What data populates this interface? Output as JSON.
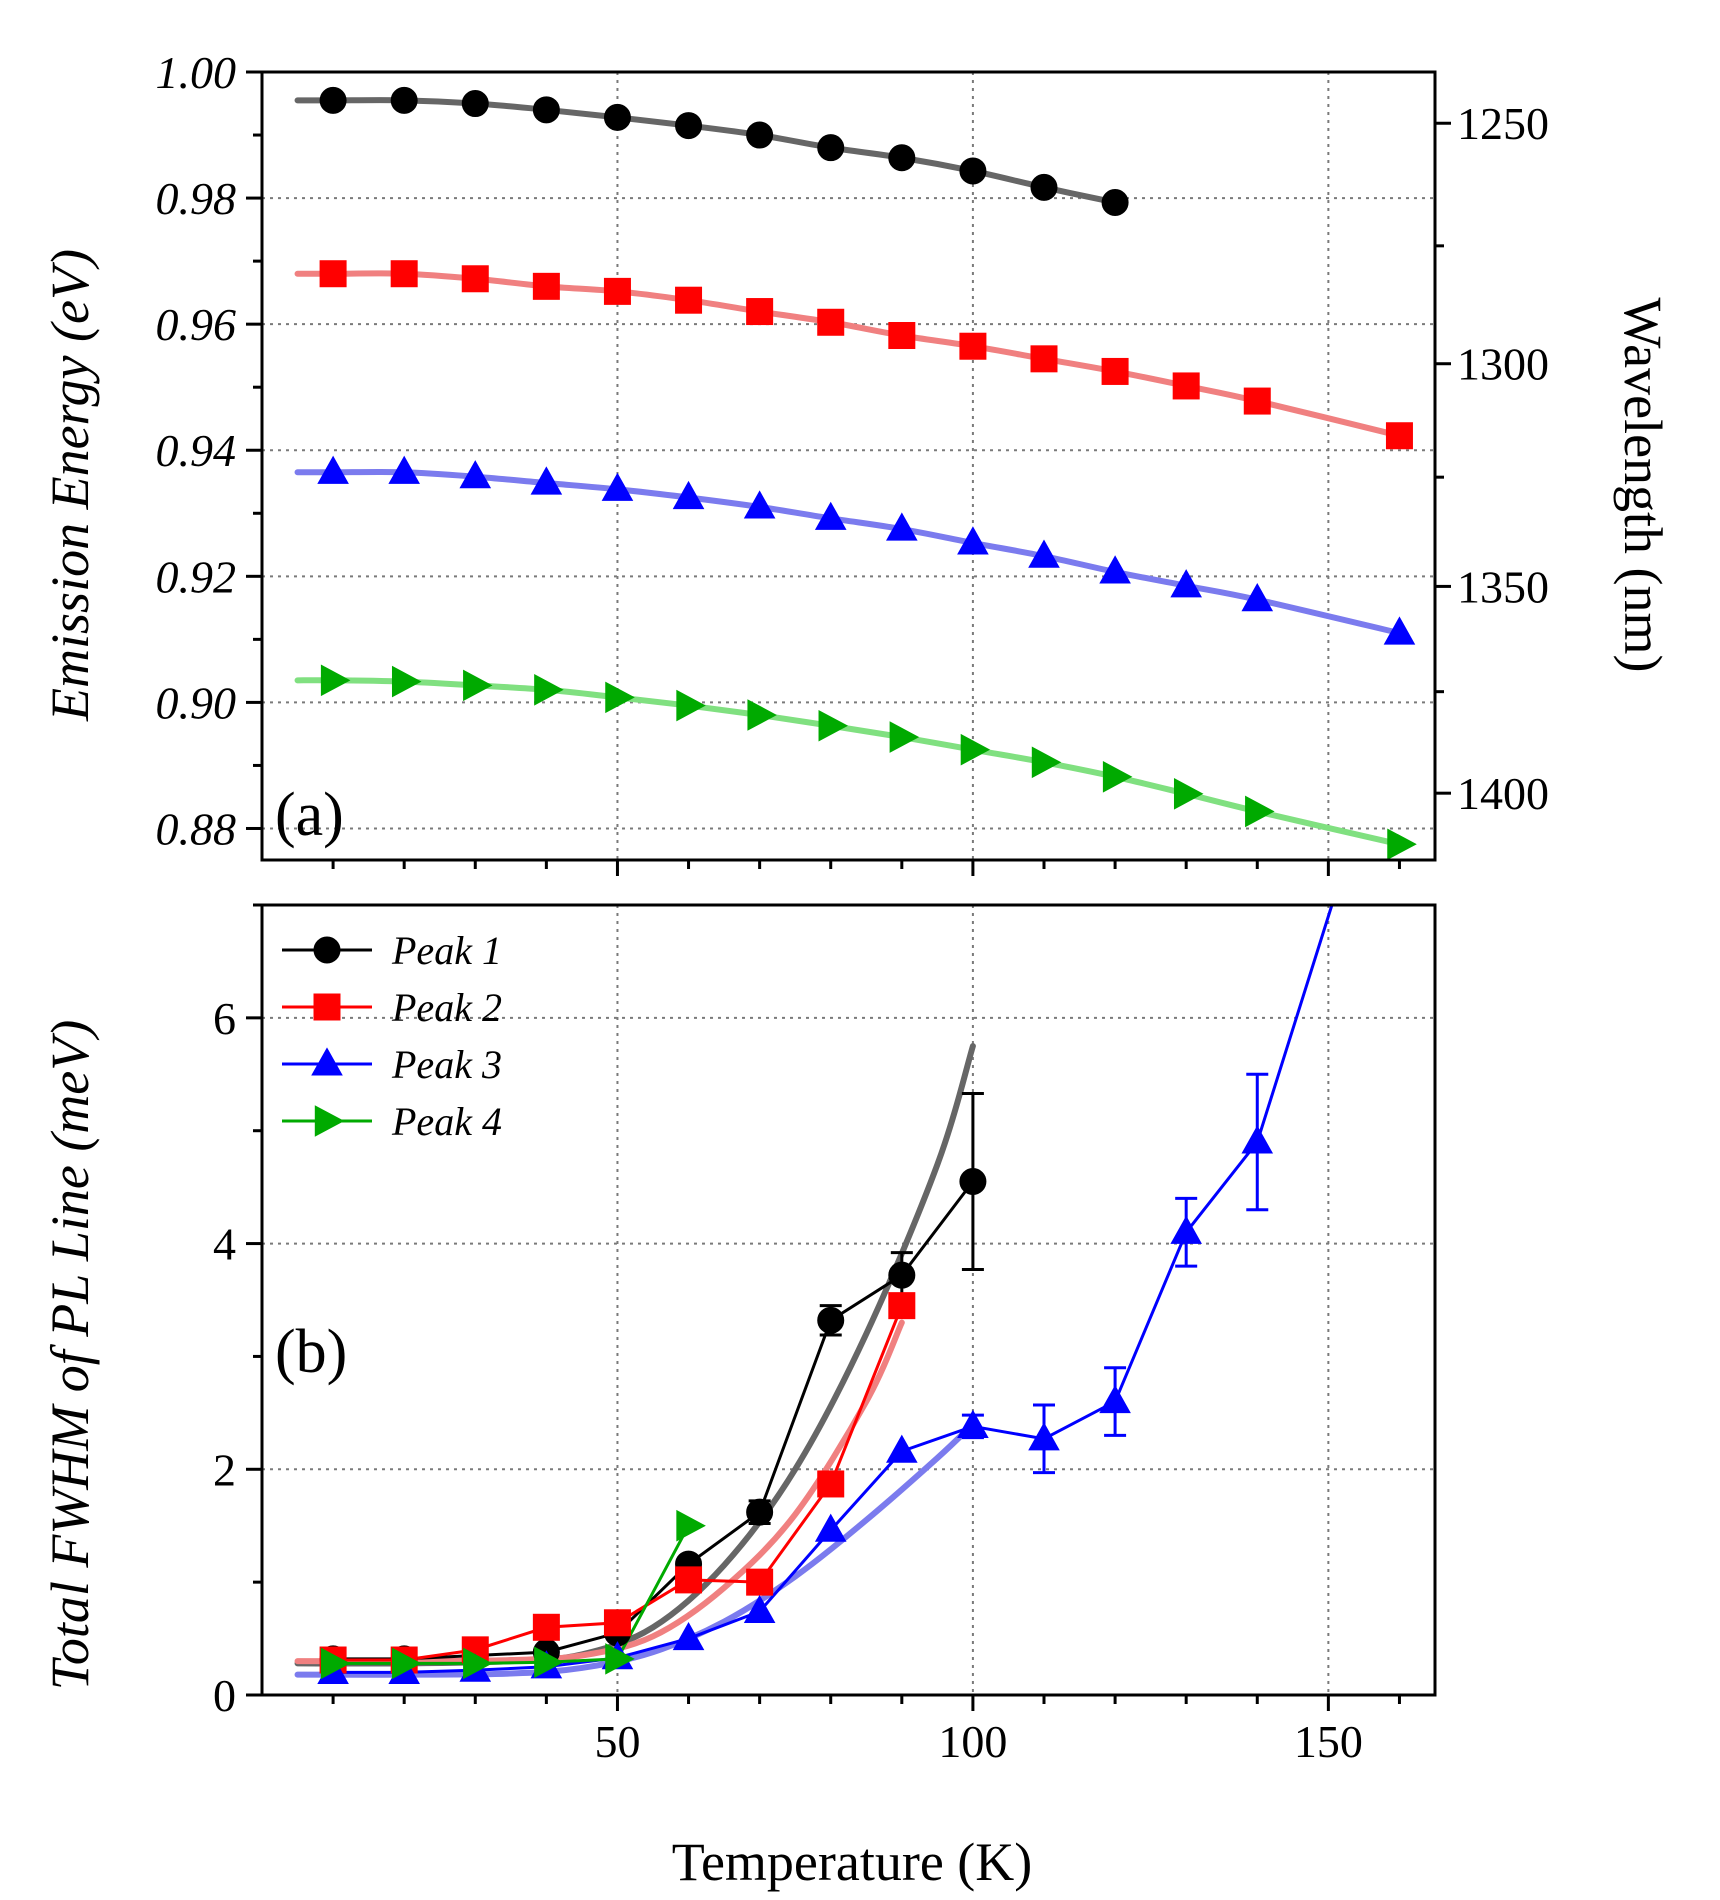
{
  "chart_data": [
    {
      "panel": "(a)",
      "type": "scatter",
      "ylabel": "Emission Energy (eV)",
      "y2label": "Wavelength (nm)",
      "xlim": [
        0,
        165
      ],
      "ylim": [
        0.875,
        1.0
      ],
      "yticks": [
        "0.88",
        "0.90",
        "0.92",
        "0.94",
        "0.96",
        "0.98",
        "1.00"
      ],
      "y2ticks": [
        "1250",
        "1300",
        "1350",
        "1400"
      ],
      "grid": true,
      "series": [
        {
          "name": "Peak 1",
          "color": "#000000",
          "fit_color": "#666666",
          "marker": "circle",
          "x": [
            10,
            20,
            30,
            40,
            50,
            60,
            70,
            80,
            90,
            100,
            110,
            120
          ],
          "y": [
            0.9955,
            0.9955,
            0.995,
            0.994,
            0.9928,
            0.9915,
            0.99,
            0.988,
            0.9864,
            0.9843,
            0.9817,
            0.9793
          ]
        },
        {
          "name": "Peak 2",
          "color": "#ff0000",
          "fit_color": "#f08080",
          "marker": "square",
          "x": [
            10,
            20,
            30,
            40,
            50,
            60,
            70,
            80,
            90,
            100,
            110,
            120,
            130,
            140,
            160
          ],
          "y": [
            0.968,
            0.968,
            0.9672,
            0.966,
            0.9652,
            0.9638,
            0.962,
            0.9603,
            0.9582,
            0.9565,
            0.9545,
            0.9525,
            0.9502,
            0.9478,
            0.9423
          ]
        },
        {
          "name": "Peak 3",
          "color": "#0000ff",
          "fit_color": "#7b7bee",
          "marker": "triangle-up",
          "x": [
            10,
            20,
            30,
            40,
            50,
            60,
            70,
            80,
            90,
            100,
            110,
            120,
            130,
            140,
            160
          ],
          "y": [
            0.9365,
            0.9365,
            0.9358,
            0.9348,
            0.9338,
            0.9325,
            0.931,
            0.9292,
            0.9275,
            0.9253,
            0.9232,
            0.9207,
            0.9185,
            0.9163,
            0.911
          ]
        },
        {
          "name": "Peak 4",
          "color": "#00aa00",
          "fit_color": "#80e080",
          "marker": "triangle-right",
          "x": [
            10,
            20,
            30,
            40,
            50,
            60,
            70,
            80,
            90,
            100,
            110,
            120,
            130,
            140,
            160
          ],
          "y": [
            0.9035,
            0.9033,
            0.9027,
            0.902,
            0.9008,
            0.8995,
            0.898,
            0.8963,
            0.8945,
            0.8925,
            0.8905,
            0.8882,
            0.8855,
            0.8827,
            0.8775
          ]
        }
      ]
    },
    {
      "panel": "(b)",
      "type": "line",
      "xlabel": "Temperature (K)",
      "ylabel": "Total FWHM of PL Line (meV)",
      "xlim": [
        0,
        165
      ],
      "ylim": [
        0,
        7
      ],
      "xticks": [
        "50",
        "100",
        "150"
      ],
      "yticks": [
        "0",
        "2",
        "4",
        "6"
      ],
      "grid": true,
      "legend": {
        "position": "top-left",
        "entries": [
          "Peak 1",
          "Peak 2",
          "Peak 3",
          "Peak 4"
        ]
      },
      "series": [
        {
          "name": "Peak 1",
          "color": "#000000",
          "fit_color": "#666666",
          "marker": "circle",
          "x": [
            10,
            20,
            30,
            40,
            50,
            60,
            70,
            80,
            90,
            100
          ],
          "y": [
            0.32,
            0.32,
            0.35,
            0.38,
            0.55,
            1.16,
            1.62,
            3.32,
            3.72,
            4.55
          ],
          "err": [
            0,
            0,
            0,
            0,
            0,
            0.05,
            0.1,
            0.13,
            0.2,
            0.78
          ]
        },
        {
          "name": "Peak 2",
          "color": "#ff0000",
          "fit_color": "#f08080",
          "marker": "square",
          "x": [
            10,
            20,
            30,
            40,
            50,
            60,
            70,
            80,
            90
          ],
          "y": [
            0.31,
            0.31,
            0.4,
            0.6,
            0.64,
            1.02,
            1.0,
            1.87,
            3.45
          ],
          "err": [
            0,
            0,
            0,
            0,
            0,
            0,
            0,
            0,
            0
          ]
        },
        {
          "name": "Peak 3",
          "color": "#0000ff",
          "fit_color": "#7b7bee",
          "marker": "triangle-up",
          "x": [
            10,
            20,
            30,
            40,
            50,
            60,
            70,
            80,
            90,
            100,
            110,
            120,
            130,
            140,
            150.5
          ],
          "y": [
            0.2,
            0.2,
            0.22,
            0.25,
            0.33,
            0.5,
            0.74,
            1.46,
            2.16,
            2.38,
            2.27,
            2.6,
            4.1,
            4.9,
            7.0
          ],
          "err": [
            0,
            0,
            0,
            0,
            0,
            0,
            0,
            0,
            0,
            0.1,
            0.3,
            0.3,
            0.3,
            0.6,
            0
          ]
        },
        {
          "name": "Peak 4",
          "color": "#00aa00",
          "fit_color": "#80e080",
          "marker": "triangle-right",
          "x": [
            10,
            20,
            30,
            40,
            50,
            60
          ],
          "y": [
            0.28,
            0.28,
            0.28,
            0.29,
            0.32,
            1.5
          ],
          "err": [
            0,
            0,
            0,
            0,
            0,
            0
          ]
        }
      ],
      "fits": [
        {
          "name": "Peak 1 fit",
          "color": "#666666",
          "x": [
            5,
            20,
            35,
            45,
            55,
            65,
            75,
            85,
            95,
            100
          ],
          "y": [
            0.28,
            0.28,
            0.3,
            0.36,
            0.6,
            1.15,
            2.0,
            3.2,
            4.7,
            5.75
          ]
        },
        {
          "name": "Peak 2 fit",
          "color": "#f08080",
          "x": [
            5,
            20,
            35,
            45,
            55,
            65,
            75,
            85,
            90
          ],
          "y": [
            0.3,
            0.3,
            0.31,
            0.35,
            0.52,
            0.95,
            1.6,
            2.6,
            3.3
          ]
        },
        {
          "name": "Peak 3 fit",
          "color": "#7b7bee",
          "x": [
            5,
            20,
            35,
            45,
            55,
            65,
            75,
            85,
            95,
            100
          ],
          "y": [
            0.18,
            0.18,
            0.19,
            0.24,
            0.38,
            0.65,
            1.05,
            1.55,
            2.1,
            2.4
          ]
        }
      ]
    }
  ],
  "panel_labels": {
    "a": "(a)",
    "b": "(b)"
  },
  "axis_titles": {
    "a_y": "Emission Energy (eV)",
    "a_y2": "Wavelength (nm)",
    "b_y": "Total FWHM of PL Line (meV)",
    "b_x": "Temperature (K)"
  }
}
